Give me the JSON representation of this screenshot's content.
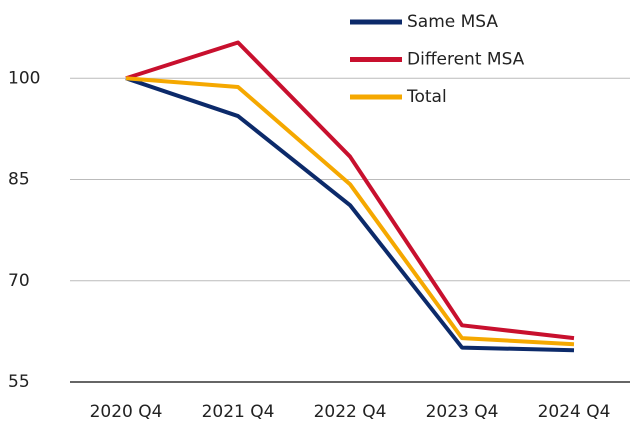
{
  "chart_data": {
    "type": "line",
    "categories": [
      "2020 Q4",
      "2021 Q4",
      "2022 Q4",
      "2023 Q4",
      "2024 Q4"
    ],
    "series": [
      {
        "name": "Same MSA",
        "color": "#0c2a6a",
        "values": [
          100,
          94.4,
          81.2,
          60.1,
          59.7
        ]
      },
      {
        "name": "Different MSA",
        "color": "#c8102e",
        "values": [
          100,
          105.3,
          88.4,
          63.4,
          61.5
        ]
      },
      {
        "name": "Total",
        "color": "#f5a800",
        "values": [
          100,
          98.7,
          84.3,
          61.5,
          60.6
        ]
      }
    ],
    "ylim": [
      55,
      107
    ],
    "yticks": [
      55,
      70,
      85,
      100
    ],
    "grid": true,
    "legend": "top"
  }
}
